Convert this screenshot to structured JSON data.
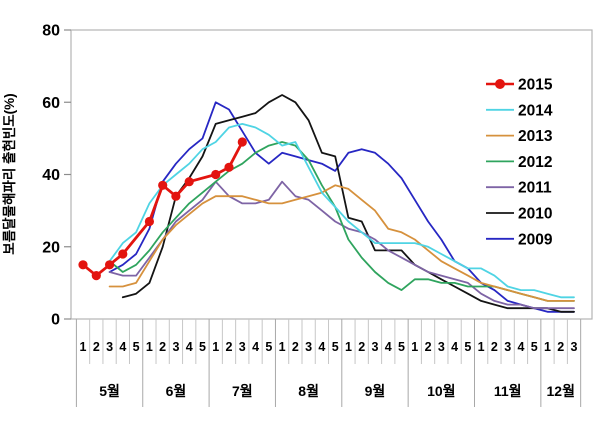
{
  "chart_data": {
    "type": "line",
    "title": "",
    "ylabel": "보름달물해파리 출현빈도(%)",
    "ylim": [
      0,
      80
    ],
    "yticks": [
      0,
      20,
      40,
      60,
      80
    ],
    "grid": false,
    "legend_position": "right-inside",
    "x_axis": {
      "month_groups": [
        {
          "label": "5월",
          "weeks": [
            "1",
            "2",
            "3",
            "4",
            "5"
          ]
        },
        {
          "label": "6월",
          "weeks": [
            "1",
            "2",
            "3",
            "4",
            "5"
          ]
        },
        {
          "label": "7월",
          "weeks": [
            "1",
            "2",
            "3",
            "4",
            "5"
          ]
        },
        {
          "label": "8월",
          "weeks": [
            "1",
            "2",
            "3",
            "4",
            "5"
          ]
        },
        {
          "label": "9월",
          "weeks": [
            "1",
            "2",
            "3",
            "4",
            "5"
          ]
        },
        {
          "label": "10월",
          "weeks": [
            "1",
            "2",
            "3",
            "4",
            "5"
          ]
        },
        {
          "label": "11월",
          "weeks": [
            "1",
            "2",
            "3",
            "4",
            "5"
          ]
        },
        {
          "label": "12월",
          "weeks": [
            "1",
            "2",
            "3"
          ]
        }
      ]
    },
    "series": [
      {
        "name": "2015",
        "color": "#e3140f",
        "marker": true,
        "line_width": 2.8,
        "values": [
          15,
          12,
          15,
          18,
          null,
          27,
          37,
          34,
          38,
          null,
          40,
          42,
          49,
          null,
          null,
          null,
          null,
          null,
          null,
          null,
          null,
          null,
          null,
          null,
          null,
          null,
          null,
          null,
          null,
          null,
          null,
          null,
          null,
          null,
          null,
          null,
          null,
          null
        ]
      },
      {
        "name": "2014",
        "color": "#4fd4e4",
        "marker": false,
        "line_width": 1.8,
        "values": [
          null,
          null,
          16,
          21,
          24,
          32,
          37,
          40,
          43,
          47,
          49,
          53,
          54,
          53,
          51,
          48,
          49,
          42,
          35,
          31,
          27,
          24,
          21,
          21,
          21,
          21,
          20,
          18,
          16,
          14,
          14,
          12,
          9,
          8,
          8,
          7,
          6,
          6
        ]
      },
      {
        "name": "2013",
        "color": "#d6913d",
        "marker": false,
        "line_width": 1.8,
        "values": [
          null,
          null,
          9,
          9,
          10,
          16,
          22,
          26,
          29,
          32,
          34,
          34,
          34,
          33,
          32,
          32,
          33,
          34,
          35,
          37,
          36,
          33,
          30,
          25,
          24,
          22,
          19,
          16,
          14,
          12,
          10,
          9,
          8,
          7,
          6,
          5,
          5,
          5
        ]
      },
      {
        "name": "2012",
        "color": "#2fa45e",
        "marker": false,
        "line_width": 1.8,
        "values": [
          null,
          null,
          16,
          13,
          15,
          19,
          24,
          28,
          32,
          35,
          38,
          41,
          43,
          46,
          48,
          49,
          48,
          44,
          37,
          31,
          22,
          17,
          13,
          10,
          8,
          11,
          11,
          10,
          10,
          9,
          9,
          9,
          8,
          7,
          6,
          5,
          5,
          5
        ]
      },
      {
        "name": "2011",
        "color": "#7e64a5",
        "marker": false,
        "line_width": 1.8,
        "values": [
          null,
          null,
          13,
          12,
          12,
          17,
          22,
          27,
          30,
          33,
          38,
          34,
          32,
          32,
          33,
          38,
          34,
          33,
          30,
          27,
          25,
          24,
          22,
          19,
          17,
          15,
          13,
          12,
          11,
          10,
          7,
          5,
          4,
          4,
          3,
          3,
          3,
          3
        ]
      },
      {
        "name": "2010",
        "color": "#141414",
        "marker": false,
        "line_width": 1.8,
        "values": [
          null,
          null,
          null,
          6,
          7,
          10,
          20,
          34,
          39,
          45,
          54,
          55,
          56,
          57,
          60,
          62,
          60,
          55,
          46,
          45,
          28,
          27,
          19,
          19,
          19,
          15,
          13,
          11,
          9,
          7,
          5,
          4,
          3,
          3,
          3,
          3,
          2,
          2
        ]
      },
      {
        "name": "2009",
        "color": "#2727c3",
        "marker": false,
        "line_width": 1.8,
        "values": [
          null,
          null,
          13,
          15,
          18,
          25,
          38,
          43,
          47,
          50,
          60,
          58,
          52,
          46,
          43,
          46,
          45,
          44,
          43,
          41,
          46,
          47,
          46,
          43,
          39,
          33,
          27,
          22,
          16,
          14,
          10,
          8,
          5,
          4,
          3,
          2,
          2,
          2
        ]
      }
    ]
  }
}
